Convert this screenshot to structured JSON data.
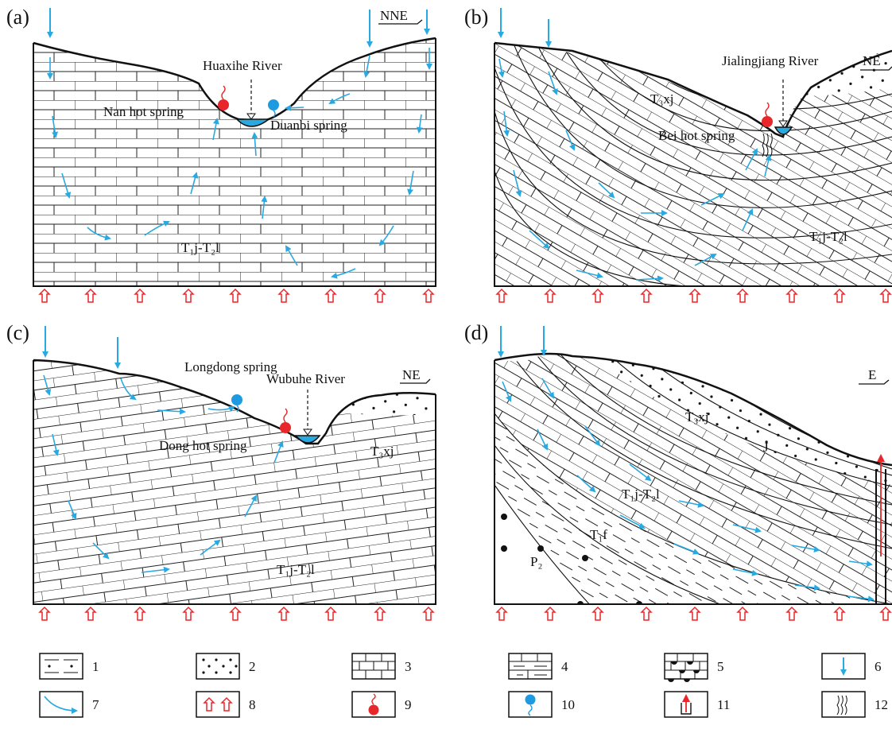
{
  "panels": {
    "a": {
      "letter": "(a)",
      "direction": "NNE",
      "river": "Huaxihe River",
      "hot_spring": "Nan hot spring",
      "cold_spring": "Duanbi spring",
      "strata": {
        "main": "T₁j-T₂l"
      }
    },
    "b": {
      "letter": "(b)",
      "direction": "NE",
      "river": "Jialingjiang River",
      "hot_spring": "Bei hot spring",
      "strata": {
        "upper": "T₃xj",
        "main": "T₁j-T₂l"
      }
    },
    "c": {
      "letter": "(c)",
      "direction": "NE",
      "river": "Wubuhe River",
      "hot_spring": "Dong hot spring",
      "cold_spring": "Longdong spring",
      "strata": {
        "upper": "T₃xj",
        "main": "T₁j-T₂l"
      }
    },
    "d": {
      "letter": "(d)",
      "direction": "E",
      "strata": {
        "jurassic": "J",
        "upper": "T₃xj",
        "main": "T₁j-T₂l",
        "feixianguan": "T₁f",
        "permian": "P₂"
      }
    }
  },
  "legend": [
    {
      "number": "1",
      "symbol": "sandy-mudstone"
    },
    {
      "number": "2",
      "symbol": "sandstone"
    },
    {
      "number": "3",
      "symbol": "limestone"
    },
    {
      "number": "4",
      "symbol": "argillaceous-limestone"
    },
    {
      "number": "5",
      "symbol": "chert-limestone"
    },
    {
      "number": "6",
      "symbol": "precipitation-recharge"
    },
    {
      "number": "7",
      "symbol": "groundwater-flow"
    },
    {
      "number": "8",
      "symbol": "heat-flow"
    },
    {
      "number": "9",
      "symbol": "hot-spring"
    },
    {
      "number": "10",
      "symbol": "cold-spring"
    },
    {
      "number": "11",
      "symbol": "geothermal-well"
    },
    {
      "number": "12",
      "symbol": "fracture-zone"
    }
  ],
  "colors": {
    "water": "#29a9e1",
    "heat": "#e8272b",
    "hot_spring": "#e8272b",
    "cold_spring": "#1e9be0",
    "line": "#111111"
  }
}
